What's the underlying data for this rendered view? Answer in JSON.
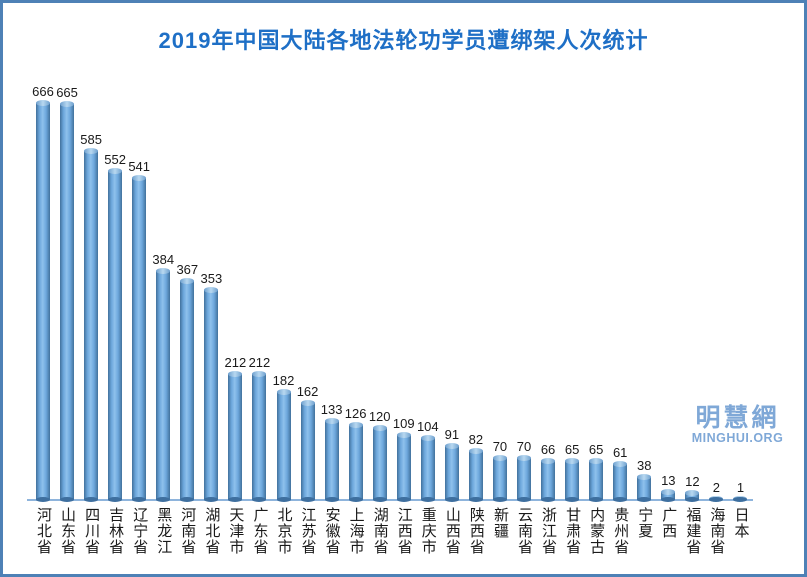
{
  "chart_data": {
    "type": "bar",
    "title": "2019年中国大陆各地法轮功学员遭绑架人次统计",
    "categories": [
      "河北省",
      "山东省",
      "四川省",
      "吉林省",
      "辽宁省",
      "黑龙江",
      "河南省",
      "湖北省",
      "天津市",
      "广东省",
      "北京市",
      "江苏省",
      "安徽省",
      "上海市",
      "湖南省",
      "江西省",
      "重庆市",
      "山西省",
      "陕西省",
      "新疆",
      "云南省",
      "浙江省",
      "甘肃省",
      "内蒙古",
      "贵州省",
      "宁夏",
      "广西",
      "福建省",
      "海南省",
      "日本"
    ],
    "values": [
      666,
      665,
      585,
      552,
      541,
      384,
      367,
      353,
      212,
      212,
      182,
      162,
      133,
      126,
      120,
      109,
      104,
      91,
      82,
      70,
      70,
      66,
      65,
      65,
      61,
      38,
      13,
      12,
      2,
      1
    ],
    "xlabel": "",
    "ylabel": "",
    "ylim": [
      0,
      700
    ],
    "grid": false,
    "legend_position": "none",
    "bar_labels_shown": true,
    "bar_style": "3d-cylinder"
  },
  "watermark": {
    "cjk": "明慧網",
    "latin": "MINGHUI.ORG"
  },
  "colors": {
    "title": "#1e6fc6",
    "frame_border": "#4e81b6",
    "bar_fill": "#6da7dc",
    "bar_edge": "#41719c",
    "axis_line": "#8eb4dc",
    "watermark": "#7fa8d7",
    "label_text": "#1a1a1a",
    "background": "#ffffff"
  }
}
